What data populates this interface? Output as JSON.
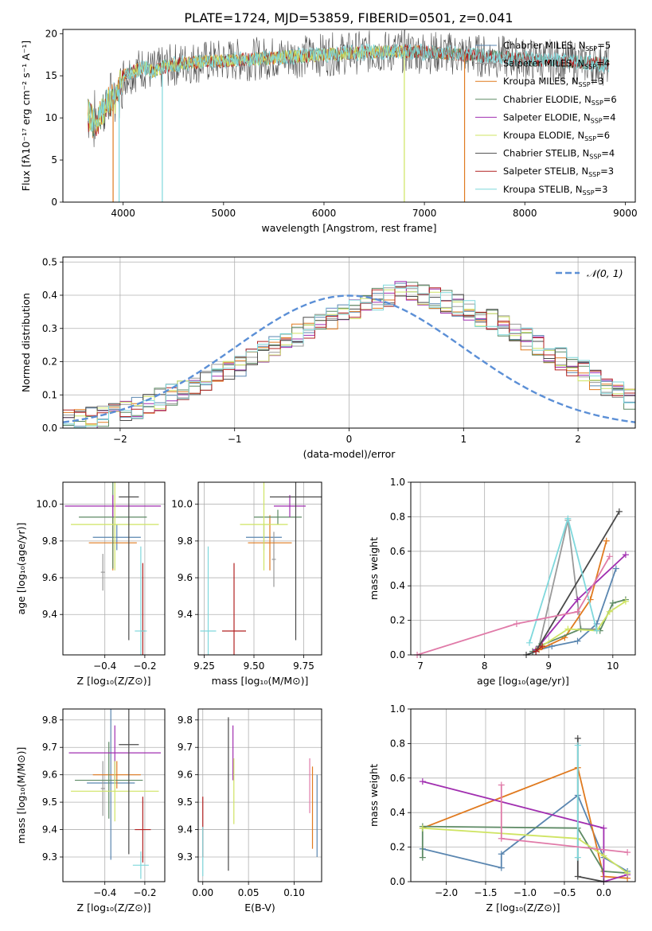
{
  "title": "PLATE=1724, MJD=53859, FIBERID=0501, z=0.041",
  "colors": {
    "chabrier_miles": "#5a86b0",
    "salpeter_miles": "#9a9a9a",
    "kroupa_miles": "#e07a1f",
    "chabrier_elodie": "#5d8a64",
    "salpeter_elodie": "#a12fb0",
    "kroupa_elodie": "#cfe463",
    "chabrier_stelib": "#4a4a4a",
    "salpeter_stelib": "#b22222",
    "kroupa_stelib": "#7fd8dc",
    "normal_curve": "#5b8fd6"
  },
  "chart_data": [
    {
      "type": "line",
      "xlabel": "wavelength [Angstrom, rest frame]",
      "ylabel": "Flux [fλ10⁻¹⁷ erg cm⁻² s⁻¹ A⁻¹]",
      "xlim": [
        3400,
        9100
      ],
      "ylim": [
        0,
        20.5
      ],
      "xticks": [
        "4000",
        "5000",
        "6000",
        "7000",
        "8000",
        "9000"
      ],
      "yticks": [
        "0",
        "5",
        "10",
        "15",
        "20"
      ],
      "grid": false,
      "legend_position": "top-right",
      "legend": [
        "Chabrier MILES, N_SSP=5",
        "Salpeter MILES, N_SSP=4",
        "Kroupa MILES, N_SSP=3",
        "Chabrier ELODIE, N_SSP=6",
        "Salpeter ELODIE, N_SSP=4",
        "Kroupa ELODIE, N_SSP=6",
        "Chabrier STELIB, N_SSP=4",
        "Salpeter STELIB, N_SSP=3",
        "Kroupa STELIB, N_SSP=3"
      ],
      "spectrum_envelope": {
        "x": [
          3650,
          3700,
          3750,
          3800,
          3850,
          3900,
          3950,
          4000,
          4100,
          4200,
          4300,
          4400,
          4500,
          4700,
          5000,
          5300,
          5600,
          6000,
          6400,
          6800,
          7200,
          7500,
          7800,
          8100,
          8400,
          8700,
          8840
        ],
        "y": [
          10.5,
          9.5,
          9.8,
          11.0,
          11.8,
          12.2,
          13.0,
          15.0,
          15.5,
          16.0,
          15.5,
          16.0,
          16.3,
          16.6,
          16.8,
          17.0,
          17.2,
          17.5,
          17.8,
          17.9,
          17.7,
          17.4,
          17.2,
          16.9,
          16.7,
          16.5,
          16.3
        ]
      },
      "model_ranges": [
        {
          "model": "Salpeter MILES",
          "x_min": 3900,
          "x_max": 8840
        },
        {
          "model": "Chabrier STELIB",
          "x_min": 3650,
          "x_max": 8840
        },
        {
          "model": "Kroupa MILES",
          "x_min": 3650,
          "x_max": 7400
        },
        {
          "model": "Kroupa ELODIE",
          "x_min": 3650,
          "x_max": 6800
        },
        {
          "model": "Kroupa STELIB",
          "x_min": 3650,
          "x_max": 8840
        }
      ],
      "drop_outs_x": [
        3900,
        3960,
        4390,
        6800,
        7400
      ]
    },
    {
      "type": "bar",
      "xlabel": "(data-model)/error",
      "ylabel": "Normed distribution",
      "xlim": [
        -2.5,
        2.5
      ],
      "ylim": [
        0,
        0.515
      ],
      "xticks": [
        "−2",
        "−1",
        "0",
        "1",
        "2"
      ],
      "yticks": [
        "0.0",
        "0.1",
        "0.2",
        "0.3",
        "0.4",
        "0.5"
      ],
      "grid": true,
      "legend_position": "top-right",
      "legend": [
        "𝒩(0, 1)"
      ],
      "bin_edges_start": -2.5,
      "bin_width": 0.1,
      "histogram_values": [
        0.02,
        0.025,
        0.03,
        0.035,
        0.045,
        0.05,
        0.06,
        0.07,
        0.085,
        0.1,
        0.11,
        0.12,
        0.14,
        0.16,
        0.18,
        0.19,
        0.21,
        0.23,
        0.25,
        0.27,
        0.28,
        0.3,
        0.31,
        0.33,
        0.35,
        0.36,
        0.37,
        0.39,
        0.4,
        0.42,
        0.41,
        0.4,
        0.39,
        0.38,
        0.37,
        0.36,
        0.34,
        0.33,
        0.31,
        0.29,
        0.27,
        0.25,
        0.23,
        0.21,
        0.19,
        0.17,
        0.15,
        0.13,
        0.11,
        0.09
      ],
      "normal_curve": {
        "mean": 0,
        "sigma": 1
      }
    },
    {
      "type": "scatter",
      "xlabel": "Z [log₁₀(Z/Z⊙)]",
      "ylabel": "age  [log₁₀(age/yr)]",
      "xlim": [
        -0.61,
        -0.1
      ],
      "ylim": [
        9.18,
        10.12
      ],
      "xticks": [
        "−0.4",
        "−0.2"
      ],
      "yticks": [
        "9.4",
        "9.6",
        "9.8",
        "10.0"
      ],
      "grid": true,
      "points": [
        {
          "model": "Chabrier MILES",
          "x": -0.34,
          "y": 9.82,
          "xerr": 0.12,
          "yerr": 0.07
        },
        {
          "model": "Salpeter MILES",
          "x": -0.41,
          "y": 9.63,
          "xerr": 0.01,
          "yerr": 0.1
        },
        {
          "model": "Kroupa MILES",
          "x": -0.36,
          "y": 9.79,
          "xerr": 0.12,
          "yerr": 0.15
        },
        {
          "model": "Chabrier ELODIE",
          "x": -0.36,
          "y": 9.93,
          "xerr": 0.17,
          "yerr": 0.28
        },
        {
          "model": "Salpeter ELODIE",
          "x": -0.36,
          "y": 9.99,
          "xerr": 0.24,
          "yerr": 0.06
        },
        {
          "model": "Kroupa ELODIE",
          "x": -0.35,
          "y": 9.89,
          "xerr": 0.22,
          "yerr": 0.25
        },
        {
          "model": "Chabrier STELIB",
          "x": -0.28,
          "y": 10.04,
          "xerr": 0.05,
          "yerr": 0.78
        },
        {
          "model": "Salpeter STELIB",
          "x": -0.21,
          "y": 9.31,
          "xerr": 0.01,
          "yerr": 0.37
        },
        {
          "model": "Kroupa STELIB",
          "x": -0.22,
          "y": 9.31,
          "xerr": 0.03,
          "yerr": 0.46
        }
      ]
    },
    {
      "type": "scatter",
      "xlabel": "mass [log₁₀(M/M⊙)]",
      "ylabel": "",
      "xlim": [
        9.22,
        9.84
      ],
      "ylim": [
        9.18,
        10.12
      ],
      "xticks": [
        "9.25",
        "9.50",
        "9.75"
      ],
      "yticks": [
        "9.4",
        "9.6",
        "9.8",
        "10.0"
      ],
      "grid": true,
      "points": [
        {
          "model": "Chabrier MILES",
          "x": 9.55,
          "y": 9.82,
          "xerr": 0.09,
          "yerr": 0.07
        },
        {
          "model": "Salpeter MILES",
          "x": 9.6,
          "y": 9.7,
          "xerr": 0.01,
          "yerr": 0.15
        },
        {
          "model": "Kroupa MILES",
          "x": 9.58,
          "y": 9.79,
          "xerr": 0.11,
          "yerr": 0.15
        },
        {
          "model": "Chabrier ELODIE",
          "x": 9.62,
          "y": 9.93,
          "xerr": 0.12,
          "yerr": 0.04
        },
        {
          "model": "Salpeter ELODIE",
          "x": 9.68,
          "y": 9.99,
          "xerr": 0.08,
          "yerr": 0.06
        },
        {
          "model": "Kroupa ELODIE",
          "x": 9.55,
          "y": 9.89,
          "xerr": 0.12,
          "yerr": 0.25
        },
        {
          "model": "Chabrier STELIB",
          "x": 9.71,
          "y": 10.04,
          "xerr": 0.13,
          "yerr": 0.78
        },
        {
          "model": "Salpeter STELIB",
          "x": 9.4,
          "y": 9.31,
          "xerr": 0.06,
          "yerr": 0.37
        },
        {
          "model": "Kroupa STELIB",
          "x": 9.27,
          "y": 9.31,
          "xerr": 0.04,
          "yerr": 0.46
        }
      ]
    },
    {
      "type": "line",
      "xlabel": "age  [log₁₀(age/yr)]",
      "ylabel": "mass weight",
      "xlim": [
        6.85,
        10.35
      ],
      "ylim": [
        0,
        1.0
      ],
      "xticks": [
        "7",
        "8",
        "9",
        "10"
      ],
      "yticks": [
        "0.0",
        "0.2",
        "0.4",
        "0.6",
        "0.8",
        "1.0"
      ],
      "grid": true,
      "series": [
        {
          "model": "Chabrier MILES",
          "x": [
            8.75,
            9.05,
            9.45,
            9.75,
            10.05
          ],
          "y": [
            0.02,
            0.05,
            0.08,
            0.18,
            0.5
          ]
        },
        {
          "model": "Salpeter MILES",
          "x": [
            8.85,
            9.3,
            9.5,
            9.75
          ],
          "y": [
            0.05,
            0.78,
            0.15,
            0.15
          ]
        },
        {
          "model": "Kroupa MILES",
          "x": [
            8.85,
            9.25,
            9.65,
            9.9
          ],
          "y": [
            0.03,
            0.1,
            0.32,
            0.66
          ]
        },
        {
          "model": "Chabrier ELODIE",
          "x": [
            8.75,
            8.85,
            9.5,
            9.8,
            10.0,
            10.2
          ],
          "y": [
            0.02,
            0.05,
            0.15,
            0.14,
            0.3,
            0.32
          ]
        },
        {
          "model": "Salpeter ELODIE",
          "x": [
            8.8,
            9.45,
            10.2
          ],
          "y": [
            0.03,
            0.32,
            0.58
          ]
        },
        {
          "model": "Kroupa ELODIE",
          "x": [
            8.85,
            9.3,
            9.75,
            9.95,
            10.2
          ],
          "y": [
            0.04,
            0.15,
            0.14,
            0.25,
            0.31
          ]
        },
        {
          "model": "Chabrier STELIB",
          "x": [
            8.65,
            8.8,
            10.1
          ],
          "y": [
            0.0,
            0.02,
            0.83
          ]
        },
        {
          "model": "Salpeter STELIB",
          "x": [
            8.8,
            8.9
          ],
          "y": [
            0.02,
            0.05
          ]
        },
        {
          "model": "Kroupa STELIB",
          "x": [
            8.7,
            9.3,
            9.75
          ],
          "y": [
            0.07,
            0.79,
            0.14
          ]
        },
        {
          "model": "Extra",
          "x": [
            6.95,
            8.5,
            9.45,
            9.95
          ],
          "y": [
            0.0,
            0.18,
            0.25,
            0.57
          ]
        }
      ]
    },
    {
      "type": "scatter",
      "xlabel": "Z [log₁₀(Z/Z⊙)]",
      "ylabel": "mass [log₁₀(M/M⊙)]",
      "xlim": [
        -0.61,
        -0.1
      ],
      "ylim": [
        9.21,
        9.84
      ],
      "xticks": [
        "−0.4",
        "−0.2"
      ],
      "yticks": [
        "9.3",
        "9.4",
        "9.5",
        "9.6",
        "9.7",
        "9.8"
      ],
      "grid": true,
      "points": [
        {
          "model": "Chabrier MILES",
          "x": -0.37,
          "y": 9.57,
          "xerr": 0.12,
          "yerr": 0.28
        },
        {
          "model": "Salpeter MILES",
          "x": -0.41,
          "y": 9.55,
          "xerr": 0.01,
          "yerr": 0.1
        },
        {
          "model": "Kroupa MILES",
          "x": -0.34,
          "y": 9.6,
          "xerr": 0.12,
          "yerr": 0.05
        },
        {
          "model": "Chabrier ELODIE",
          "x": -0.38,
          "y": 9.58,
          "xerr": 0.17,
          "yerr": 0.14
        },
        {
          "model": "Salpeter ELODIE",
          "x": -0.35,
          "y": 9.68,
          "xerr": 0.23,
          "yerr": 0.1
        },
        {
          "model": "Kroupa ELODIE",
          "x": -0.35,
          "y": 9.54,
          "xerr": 0.22,
          "yerr": 0.11
        },
        {
          "model": "Chabrier STELIB",
          "x": -0.28,
          "y": 9.71,
          "xerr": 0.05,
          "yerr": 0.4
        },
        {
          "model": "Salpeter STELIB",
          "x": -0.21,
          "y": 9.4,
          "xerr": 0.04,
          "yerr": 0.12
        },
        {
          "model": "Kroupa STELIB",
          "x": -0.22,
          "y": 9.27,
          "xerr": 0.04,
          "yerr": 0.05
        }
      ]
    },
    {
      "type": "scatter",
      "xlabel": "E(B-V)",
      "ylabel": "",
      "xlim": [
        -0.005,
        0.13
      ],
      "ylim": [
        9.21,
        9.84
      ],
      "xticks": [
        "0.00",
        "0.05",
        "0.10"
      ],
      "yticks": [
        "9.3",
        "9.4",
        "9.5",
        "9.6",
        "9.7",
        "9.8"
      ],
      "grid": true,
      "points": [
        {
          "model": "Chabrier MILES",
          "x": 0.125,
          "y": 9.45,
          "xerr": 0,
          "yerr": 0.15
        },
        {
          "model": "Kroupa MILES",
          "x": 0.12,
          "y": 9.48,
          "xerr": 0,
          "yerr": 0.15
        },
        {
          "model": "Salpeter ELODIE",
          "x": 0.033,
          "y": 9.68,
          "xerr": 0,
          "yerr": 0.1
        },
        {
          "model": "Kroupa ELODIE",
          "x": 0.034,
          "y": 9.54,
          "xerr": 0,
          "yerr": 0.12
        },
        {
          "model": "Chabrier STELIB",
          "x": 0.028,
          "y": 9.53,
          "xerr": 0,
          "yerr": 0.28
        },
        {
          "model": "Salpeter STELIB",
          "x": 0.0,
          "y": 9.41,
          "xerr": 0,
          "yerr": 0.11
        },
        {
          "model": "Kroupa STELIB",
          "x": 0.0,
          "y": 9.32,
          "xerr": 0,
          "yerr": 0.09
        },
        {
          "model": "Extra",
          "x": 0.117,
          "y": 9.56,
          "xerr": 0,
          "yerr": 0.1
        }
      ]
    },
    {
      "type": "line",
      "xlabel": "Z [log₁₀(Z/Z⊙)]",
      "ylabel": "mass weight",
      "xlim": [
        -2.45,
        0.4
      ],
      "ylim": [
        0,
        1.0
      ],
      "xticks": [
        "−2.0",
        "−1.5",
        "−1.0",
        "−0.5",
        "0.0"
      ],
      "yticks": [
        "0.0",
        "0.2",
        "0.4",
        "0.6",
        "0.8",
        "1.0"
      ],
      "grid": true,
      "series": [
        {
          "model": "Chabrier MILES",
          "x": [
            -2.3,
            -1.3,
            -1.3,
            -0.33,
            0.0,
            0.3
          ],
          "y": [
            0.19,
            0.08,
            0.16,
            0.5,
            0.14,
            0.06
          ]
        },
        {
          "model": "Kroupa MILES",
          "x": [
            -2.3,
            -0.33,
            0.0,
            0.3
          ],
          "y": [
            0.31,
            0.66,
            0.03,
            0.02
          ]
        },
        {
          "model": "Chabrier ELODIE",
          "x": [
            -2.3,
            -2.3,
            -0.33,
            0.0,
            0.3
          ],
          "y": [
            0.14,
            0.32,
            0.31,
            0.06,
            0.05
          ]
        },
        {
          "model": "Salpeter ELODIE",
          "x": [
            -2.3,
            -0.0,
            0.0,
            0.3
          ],
          "y": [
            0.58,
            0.31,
            0.0,
            0.04
          ]
        },
        {
          "model": "Kroupa ELODIE",
          "x": [
            -2.3,
            -0.33,
            0.0,
            0.3
          ],
          "y": [
            0.31,
            0.25,
            0.15,
            0.05
          ]
        },
        {
          "model": "Chabrier STELIB",
          "x": [
            -0.33,
            -0.33,
            0.0
          ],
          "y": [
            0.83,
            0.03,
            0.0
          ]
        },
        {
          "model": "Kroupa STELIB",
          "x": [
            -0.33,
            -0.33
          ],
          "y": [
            0.79,
            0.14
          ]
        },
        {
          "model": "Extra",
          "x": [
            -1.3,
            -1.3,
            0.3
          ],
          "y": [
            0.56,
            0.25,
            0.17
          ]
        }
      ]
    }
  ]
}
